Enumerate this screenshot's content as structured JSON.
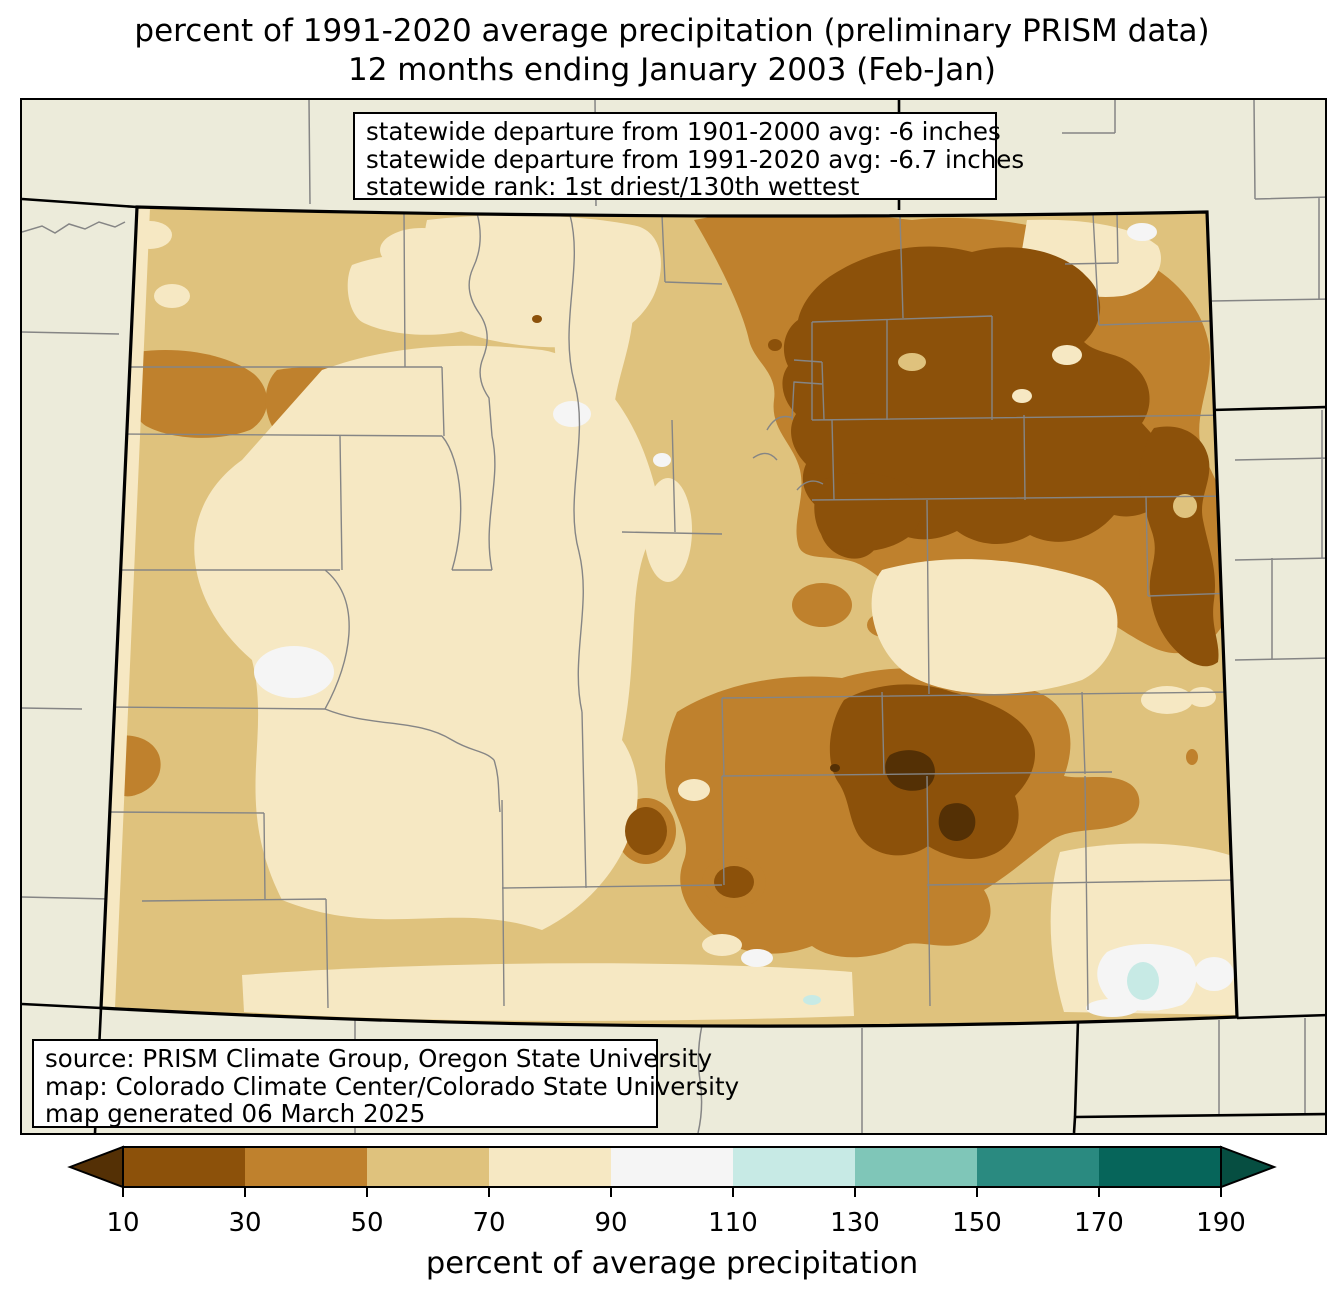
{
  "title": {
    "line1": "percent of 1991-2020 average precipitation (preliminary PRISM data)",
    "line2": "12 months ending January 2003 (Feb-Jan)"
  },
  "stats_box": {
    "lines": [
      "statewide departure from 1901-2000 avg: -6 inches",
      "statewide departure from 1991-2020 avg: -6.7 inches",
      "statewide rank: 1st driest/130th wettest"
    ]
  },
  "source_box": {
    "lines": [
      "source: PRISM Climate Group, Oregon State University",
      "map: Colorado Climate Center/Colorado State University",
      "map generated 06 March 2025"
    ]
  },
  "colorbar": {
    "label": "percent of average precipitation",
    "tick_values": [
      "10",
      "30",
      "50",
      "70",
      "90",
      "110",
      "130",
      "150",
      "170",
      "190"
    ],
    "under_arrow_color": "#543005",
    "over_arrow_color": "#064e41",
    "segment_colors": [
      "#8c510a",
      "#bf812d",
      "#dfc27d",
      "#f6e8c3",
      "#f5f5f5",
      "#c7eae5",
      "#7fc6b8",
      "#2a8a80",
      "#06655a"
    ],
    "segment_ranges": [
      "10-30",
      "30-50",
      "50-70",
      "70-90",
      "90-110",
      "110-130",
      "130-150",
      "150-170",
      "170-190"
    ]
  },
  "map": {
    "region": "Colorado and surrounding states with county boundaries",
    "background_color": "#ECEBDA",
    "county_line_color": "#858585",
    "state_border_color": "#000000",
    "value_colors": {
      "under_10": "#543005",
      "10-30": "#8c510a",
      "30-50": "#bf812d",
      "50-70": "#dfc27d",
      "70-90": "#f6e8c3",
      "90-110": "#f5f5f5",
      "110-130": "#c7eae5",
      "130-150": "#7fc6b8",
      "150-170": "#2a8a80",
      "170-190": "#06655a",
      "over_190": "#064e41"
    }
  }
}
